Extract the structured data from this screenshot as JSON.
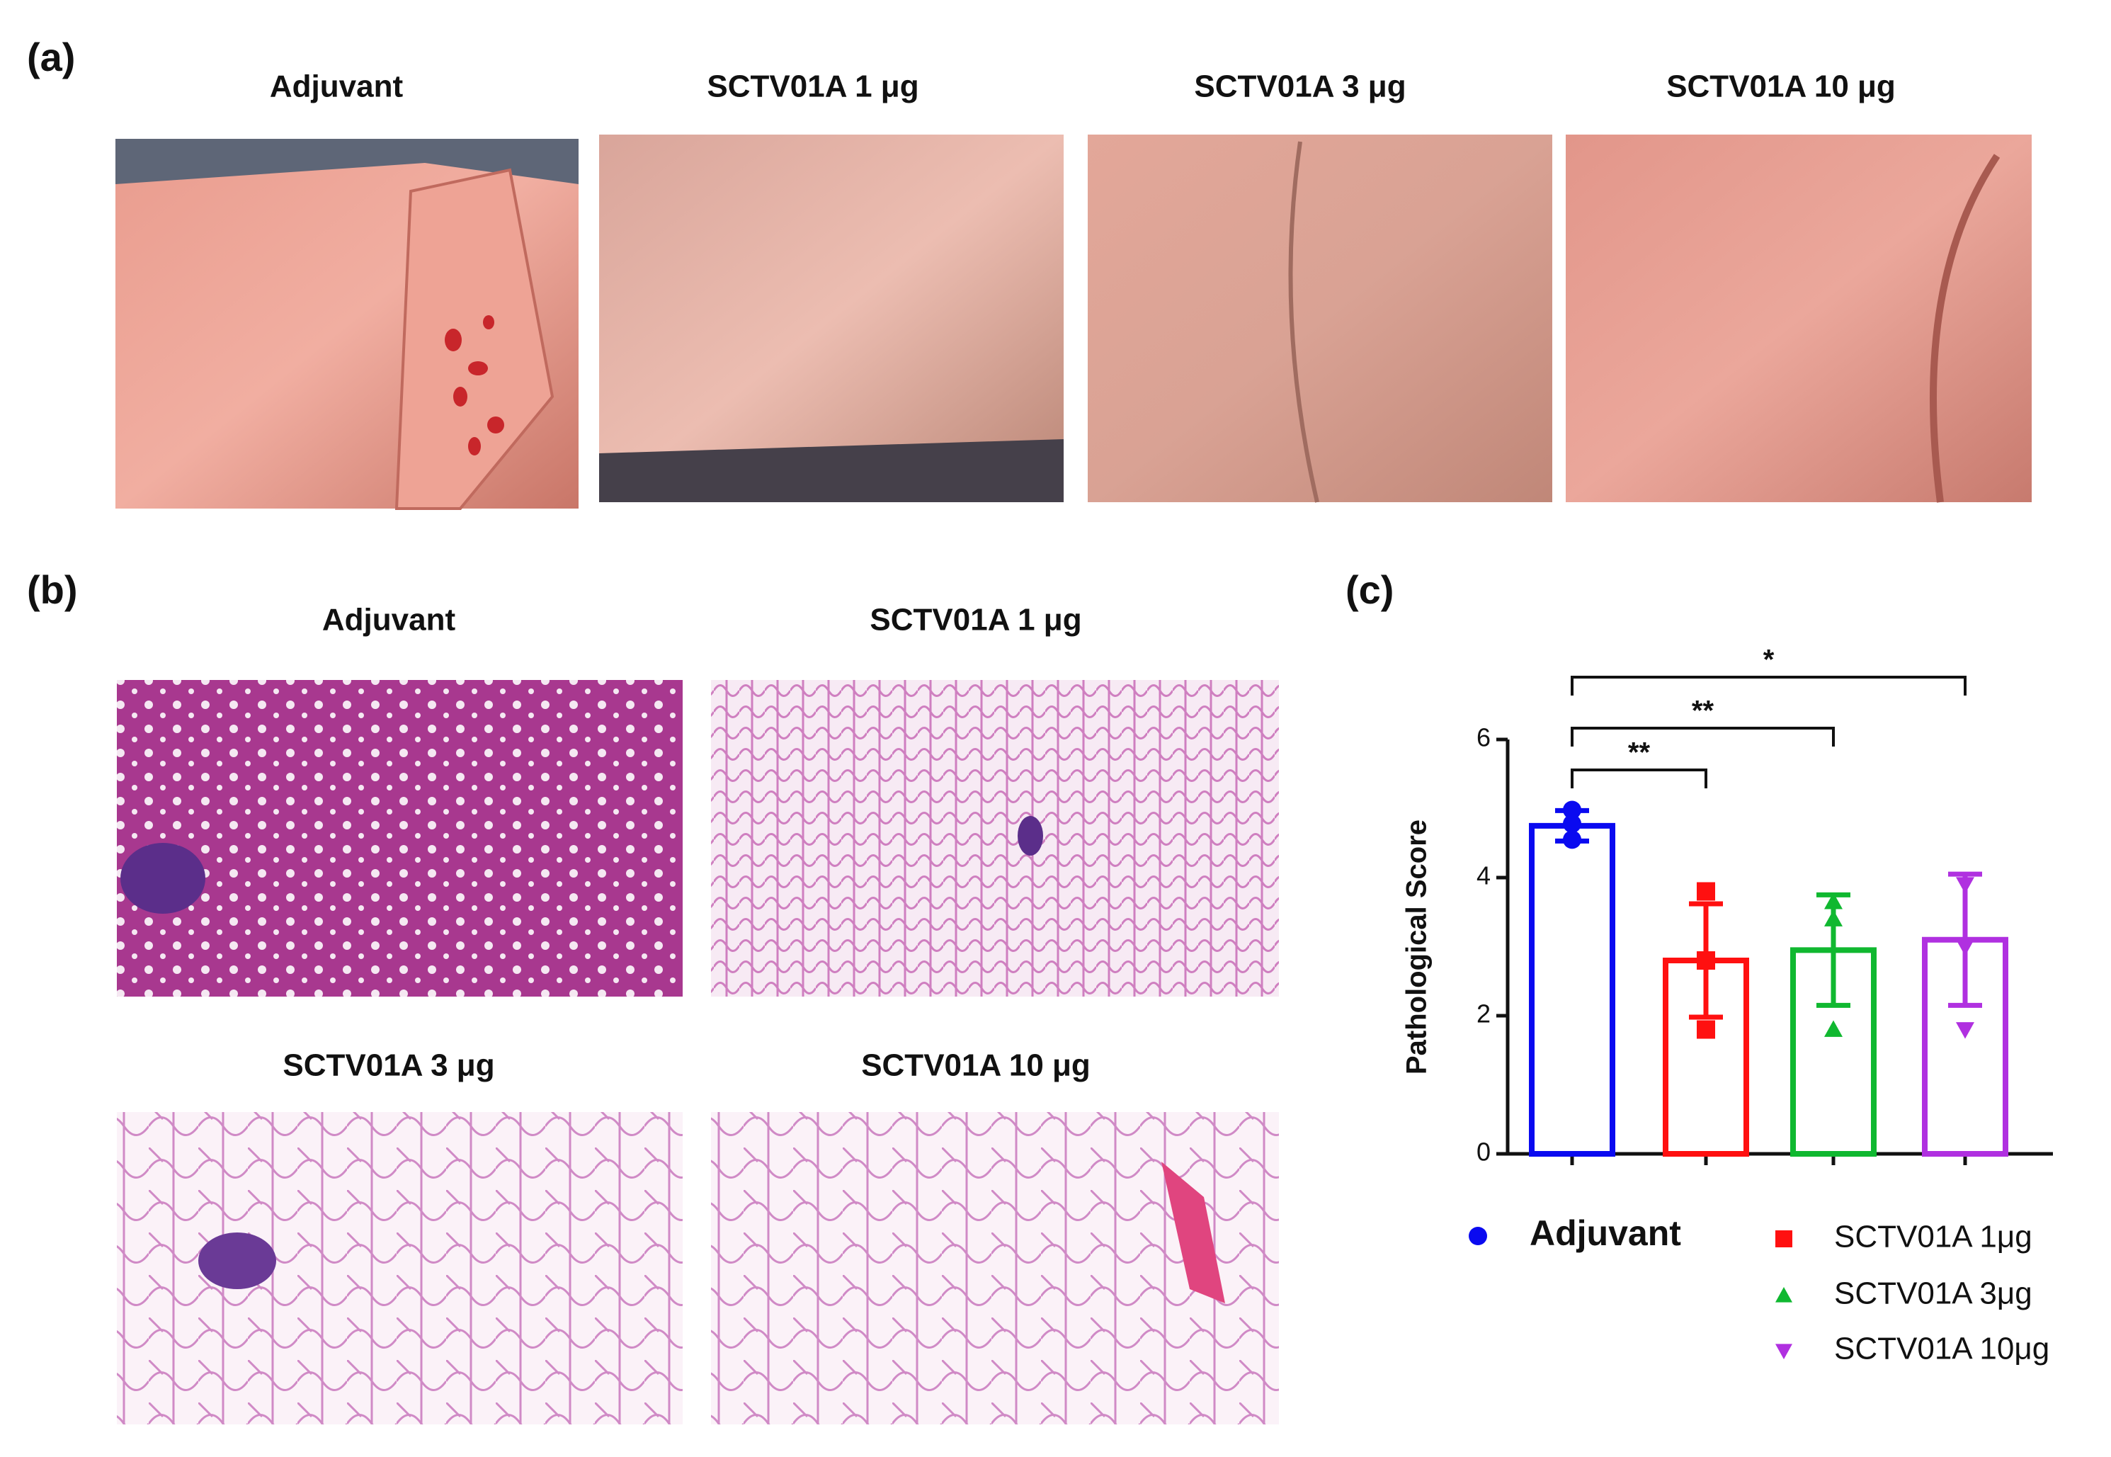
{
  "panel_a": {
    "label": "(a)",
    "titles": [
      "Adjuvant",
      "SCTV01A 1 μg",
      "SCTV01A 3 μg",
      "SCTV01A 10 μg"
    ]
  },
  "panel_b": {
    "label": "(b)",
    "titles": [
      "Adjuvant",
      "SCTV01A 1 μg",
      "SCTV01A 3 μg",
      "SCTV01A 10 μg"
    ]
  },
  "panel_c": {
    "label": "(c)"
  },
  "chart_data": {
    "type": "bar",
    "ylabel": "Pathological Score",
    "ylim": [
      0,
      6
    ],
    "yticks": [
      0,
      2,
      4,
      6
    ],
    "series": [
      {
        "name": "Adjuvant",
        "color": "#0a0af0",
        "marker": "circle",
        "value": 4.75,
        "error": 0.22,
        "points": [
          4.98,
          4.78,
          4.55
        ]
      },
      {
        "name": "SCTV01A 1μg",
        "color": "#ff1010",
        "marker": "square",
        "value": 2.8,
        "error": 0.82,
        "points": [
          3.8,
          2.8,
          1.8
        ]
      },
      {
        "name": "SCTV01A 3μg",
        "color": "#10b830",
        "marker": "triangle-up",
        "value": 2.95,
        "error": 0.8,
        "points": [
          3.65,
          3.4,
          1.8
        ]
      },
      {
        "name": "SCTV01A 10μg",
        "color": "#b030e0",
        "marker": "triangle-down",
        "value": 3.1,
        "error": 0.95,
        "points": [
          3.9,
          3.0,
          1.8
        ]
      }
    ],
    "annotations": [
      "**",
      "**",
      "*"
    ]
  }
}
